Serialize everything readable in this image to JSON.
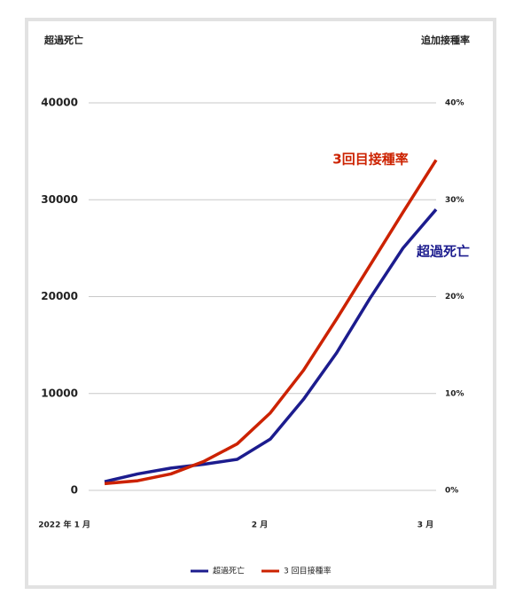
{
  "chart_data": {
    "type": "line",
    "ylabel": "超過死亡",
    "y2label": "追加接種率",
    "categories": [
      "2022 年 1 月",
      null,
      null,
      null,
      null,
      "2 月",
      null,
      null,
      null,
      null,
      "3 月"
    ],
    "series": [
      {
        "name": "超過死亡",
        "color": "#1c1c8e",
        "values": [
          900,
          1700,
          2300,
          2700,
          3200,
          5300,
          9400,
          14200,
          19800,
          25000,
          29000
        ]
      },
      {
        "name": "3 回目接種率",
        "color": "#cc2200",
        "axis": "y2",
        "values": [
          0.7,
          1.0,
          1.7,
          3.0,
          4.8,
          8.0,
          12.4,
          17.7,
          23.2,
          28.7,
          34.1
        ]
      }
    ],
    "ylim": [
      0,
      40000
    ],
    "yticks": [
      0,
      10000,
      20000,
      30000,
      40000
    ],
    "y2lim": [
      0,
      40
    ],
    "y2ticks": [
      {
        "value": 0,
        "label": "0%"
      },
      {
        "value": 10,
        "label": "10%"
      },
      {
        "value": 20,
        "label": "20%"
      },
      {
        "value": 30,
        "label": "30%"
      },
      {
        "value": 40,
        "label": "40%"
      }
    ],
    "annotations": [
      {
        "text": "3回目接種率",
        "color": "#cc2200"
      },
      {
        "text": "超過死亡",
        "color": "#1c1c8e"
      }
    ],
    "grid": true,
    "legend": "bottom"
  }
}
